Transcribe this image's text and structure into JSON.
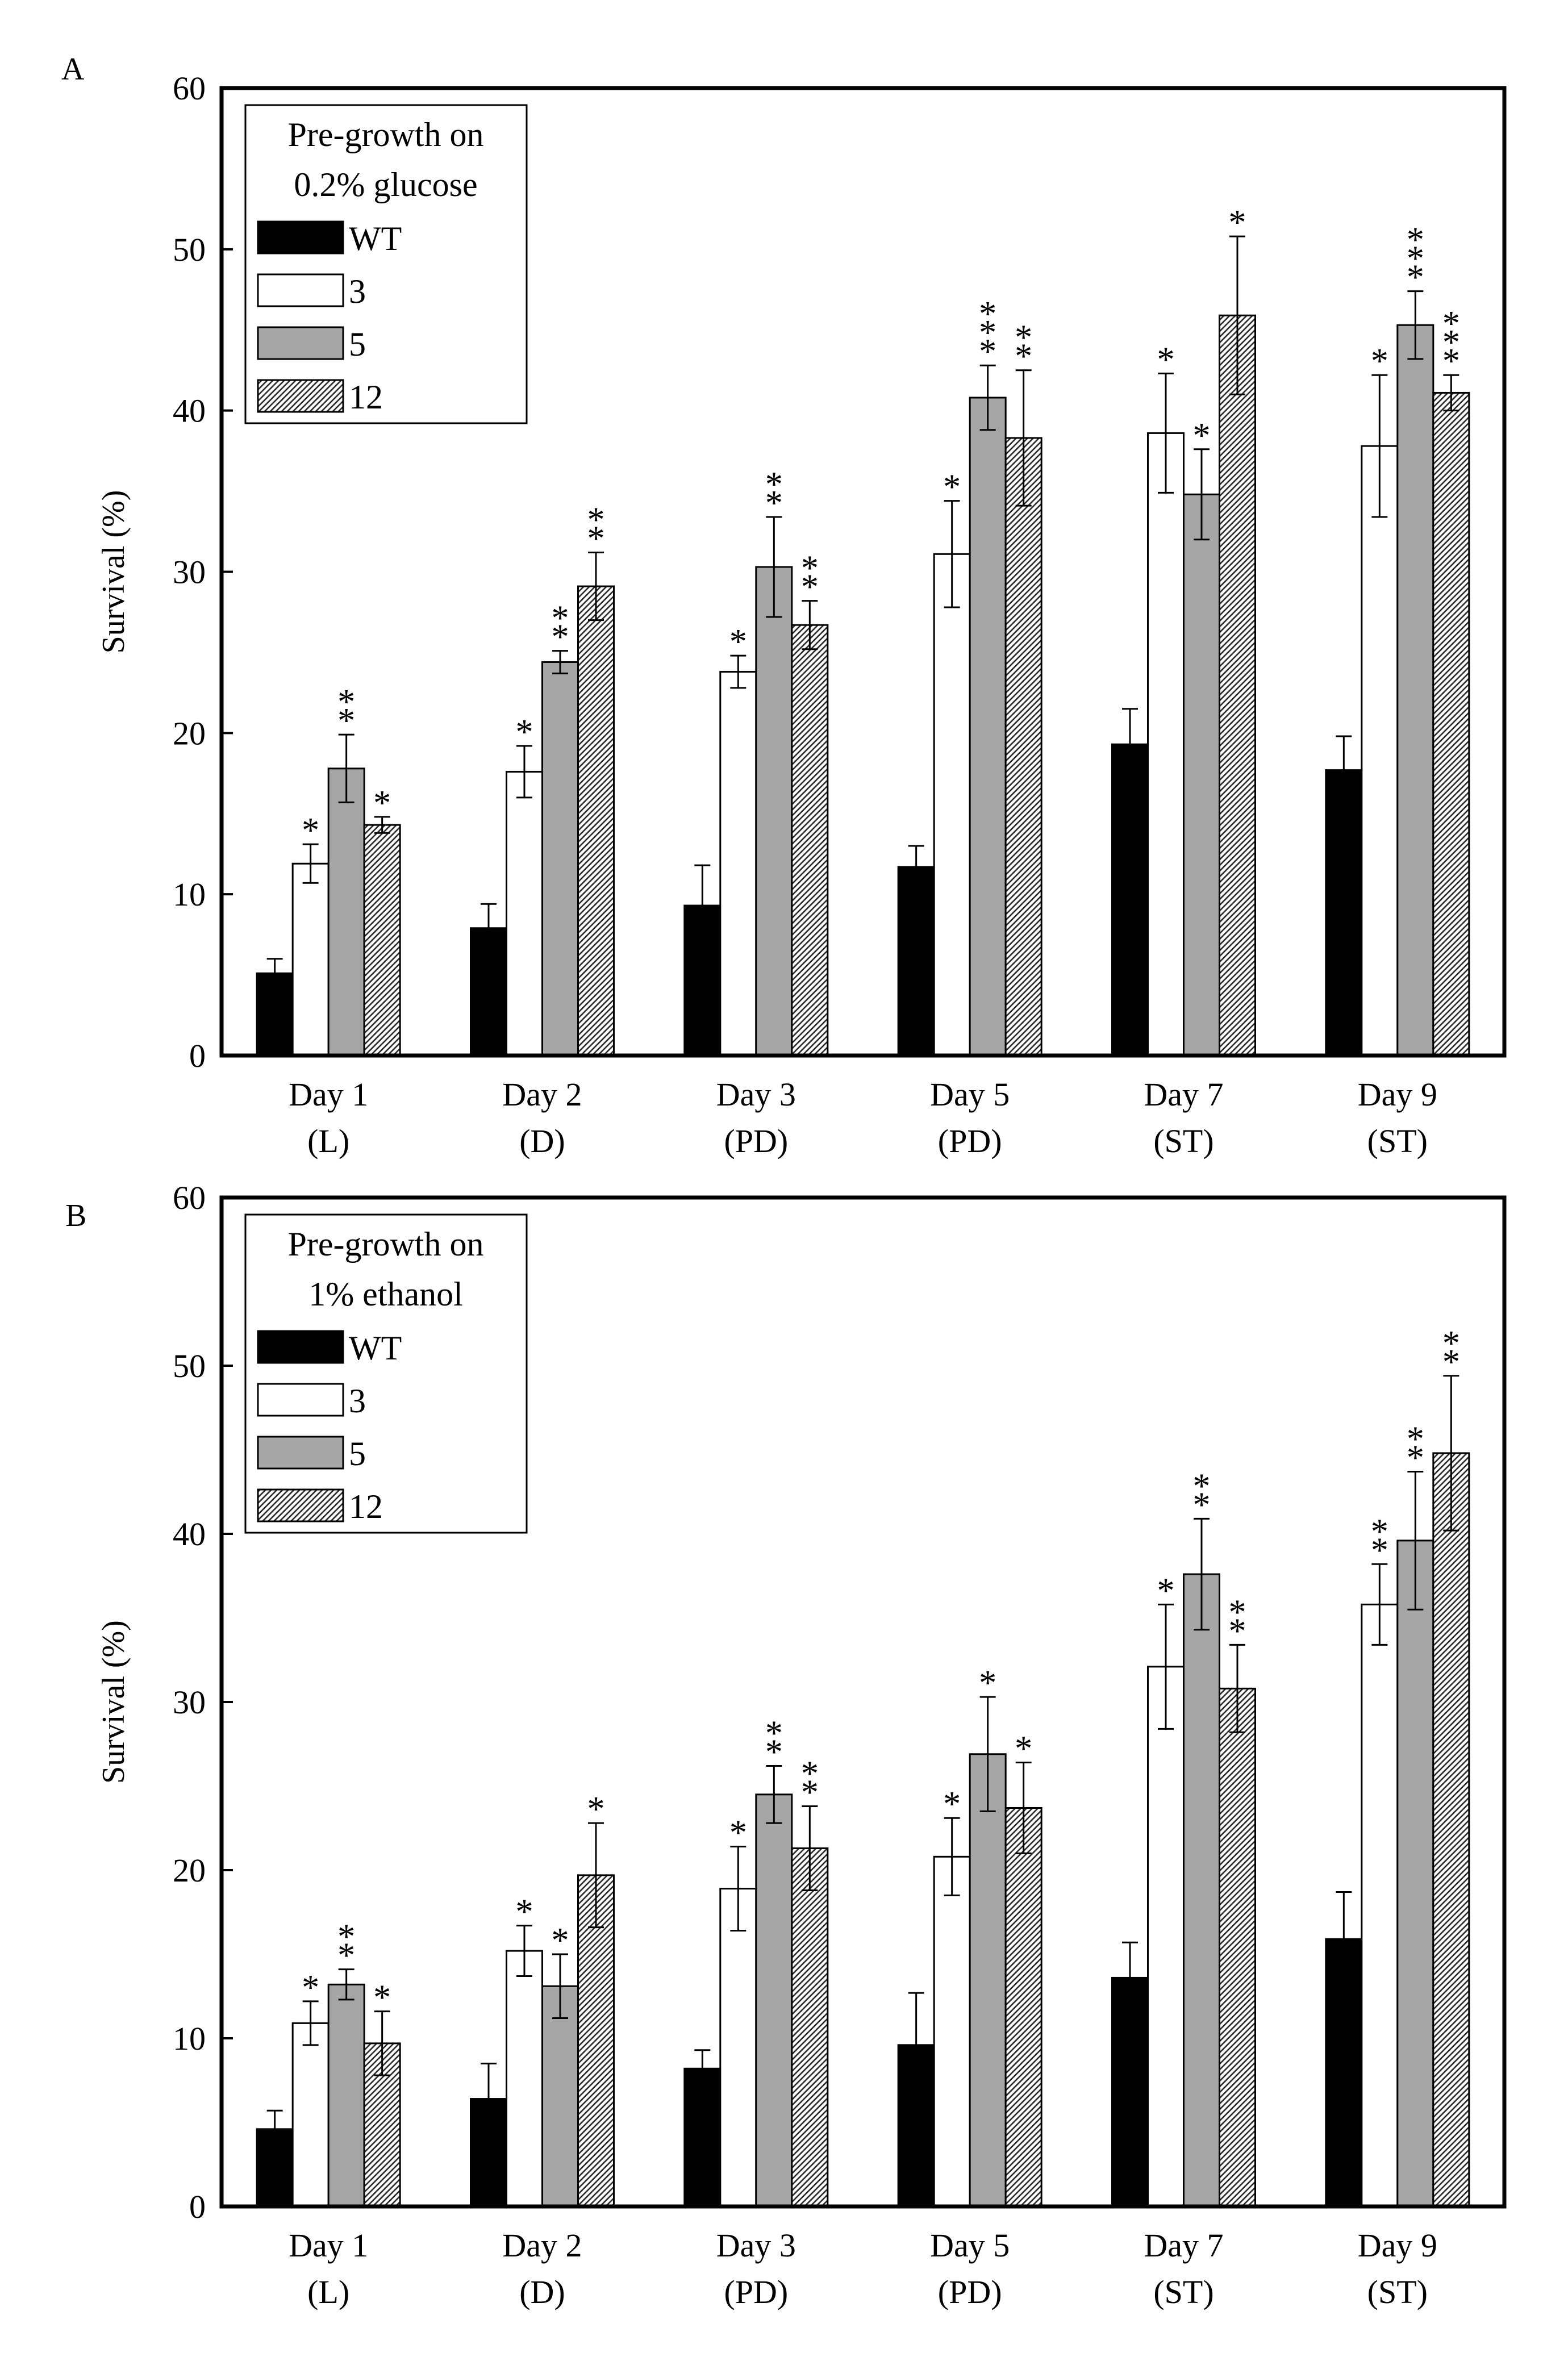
{
  "chart_data": [
    {
      "type": "bar",
      "panel_label": "A",
      "legend_title": [
        "Pre-growth on",
        "0.2% glucose"
      ],
      "legend_placement": "top-left",
      "ylabel": "Survival (%)",
      "ylim": [
        0,
        60
      ],
      "yticks": [
        0,
        10,
        20,
        30,
        40,
        50,
        60
      ],
      "categories": [
        [
          "Day 1",
          "(L)"
        ],
        [
          "Day 2",
          "(D)"
        ],
        [
          "Day 3",
          "(PD)"
        ],
        [
          "Day 5",
          "(PD)"
        ],
        [
          "Day 7",
          "(ST)"
        ],
        [
          "Day 9",
          "(ST)"
        ]
      ],
      "series": [
        {
          "name": "WT",
          "fill": "black",
          "values": [
            5.1,
            7.9,
            9.3,
            11.7,
            19.3,
            17.7
          ],
          "errors": [
            0.9,
            1.5,
            2.5,
            1.3,
            2.2,
            2.1
          ],
          "stars": [
            0,
            0,
            0,
            0,
            0,
            0
          ]
        },
        {
          "name": "3",
          "fill": "white",
          "values": [
            11.9,
            17.6,
            23.8,
            31.1,
            38.6,
            37.8
          ],
          "errors": [
            1.2,
            1.6,
            1.0,
            3.3,
            3.7,
            4.4
          ],
          "stars": [
            1,
            1,
            1,
            1,
            1,
            1
          ]
        },
        {
          "name": "5",
          "fill": "gray",
          "values": [
            17.8,
            24.4,
            30.3,
            40.8,
            34.8,
            45.3
          ],
          "errors": [
            2.1,
            0.7,
            3.1,
            2.0,
            2.8,
            2.1
          ],
          "stars": [
            2,
            2,
            2,
            3,
            1,
            3
          ]
        },
        {
          "name": "12",
          "fill": "hatch",
          "values": [
            14.3,
            29.1,
            26.7,
            38.3,
            45.9,
            41.1
          ],
          "errors": [
            0.5,
            2.1,
            1.5,
            4.2,
            4.9,
            1.1
          ],
          "stars": [
            1,
            2,
            2,
            2,
            1,
            3
          ]
        }
      ]
    },
    {
      "type": "bar",
      "panel_label": "B",
      "legend_title": [
        "Pre-growth on",
        "1% ethanol"
      ],
      "legend_placement": "top-left",
      "ylabel": "Survival (%)",
      "ylim": [
        0,
        60
      ],
      "yticks": [
        0,
        10,
        20,
        30,
        40,
        50,
        60
      ],
      "categories": [
        [
          "Day 1",
          "(L)"
        ],
        [
          "Day 2",
          "(D)"
        ],
        [
          "Day 3",
          "(PD)"
        ],
        [
          "Day 5",
          "(PD)"
        ],
        [
          "Day 7",
          "(ST)"
        ],
        [
          "Day 9",
          "(ST)"
        ]
      ],
      "series": [
        {
          "name": "WT",
          "fill": "black",
          "values": [
            4.6,
            6.4,
            8.2,
            9.6,
            13.6,
            15.9
          ],
          "errors": [
            1.1,
            2.1,
            1.1,
            3.1,
            2.1,
            2.8
          ],
          "stars": [
            0,
            0,
            0,
            0,
            0,
            0
          ]
        },
        {
          "name": "3",
          "fill": "white",
          "values": [
            10.9,
            15.2,
            18.9,
            20.8,
            32.1,
            35.8
          ],
          "errors": [
            1.3,
            1.5,
            2.5,
            2.3,
            3.7,
            2.4
          ],
          "stars": [
            1,
            1,
            1,
            1,
            1,
            2
          ]
        },
        {
          "name": "5",
          "fill": "gray",
          "values": [
            13.2,
            13.1,
            24.5,
            26.9,
            37.6,
            39.6
          ],
          "errors": [
            0.9,
            1.9,
            1.7,
            3.4,
            3.3,
            4.1
          ],
          "stars": [
            2,
            1,
            2,
            1,
            2,
            2
          ]
        },
        {
          "name": "12",
          "fill": "hatch",
          "values": [
            9.7,
            19.7,
            21.3,
            23.7,
            30.8,
            44.8
          ],
          "errors": [
            1.9,
            3.1,
            2.5,
            2.7,
            2.6,
            4.6
          ],
          "stars": [
            1,
            1,
            2,
            1,
            2,
            2
          ]
        }
      ]
    }
  ]
}
